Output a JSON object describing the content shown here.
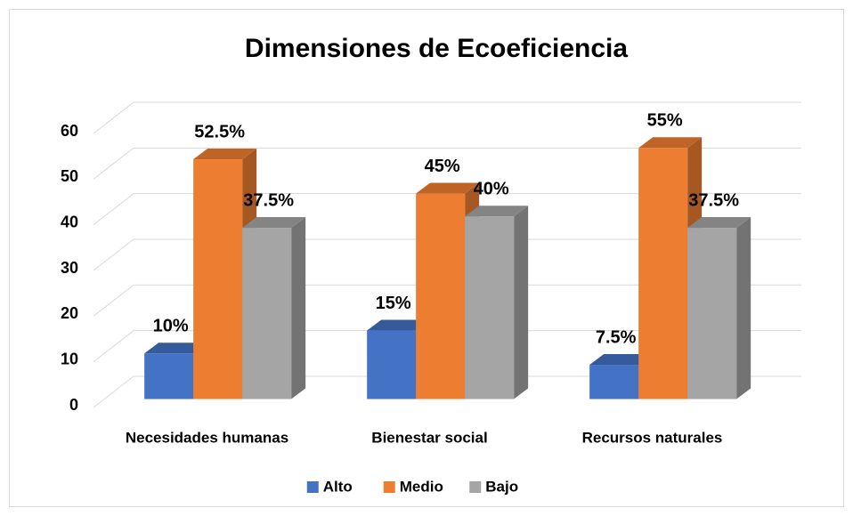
{
  "chart_data": {
    "type": "bar3d",
    "title": "Dimensiones de Ecoeficiencia",
    "categories": [
      "Necesidades humanas",
      "Bienestar social",
      "Recursos naturales"
    ],
    "series": [
      {
        "name": "Alto",
        "color": "#4472c4",
        "values": [
          10,
          15,
          7.5
        ],
        "value_labels": [
          "10%",
          "15%",
          "7.5%"
        ]
      },
      {
        "name": "Medio",
        "color": "#ed7d31",
        "values": [
          52.5,
          45,
          55
        ],
        "value_labels": [
          "52.5%",
          "45%",
          "55%"
        ]
      },
      {
        "name": "Bajo",
        "color": "#a5a5a5",
        "values": [
          37.5,
          40,
          37.5
        ],
        "value_labels": [
          "37.5%",
          "40%",
          "37.5%"
        ]
      }
    ],
    "ylim": [
      0,
      60
    ],
    "yticks": [
      0,
      10,
      20,
      30,
      40,
      50,
      60
    ],
    "grid": true,
    "legend": "bottom"
  }
}
